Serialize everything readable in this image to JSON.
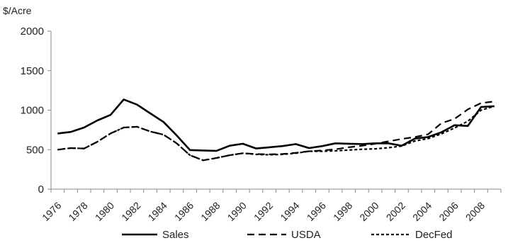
{
  "chart_data": {
    "type": "line",
    "ylabel": "$/Acre",
    "ylim": [
      0,
      2000
    ],
    "yticks": [
      "0",
      "500",
      "1000",
      "1500",
      "2000"
    ],
    "x": [
      1976,
      1977,
      1978,
      1979,
      1980,
      1981,
      1982,
      1983,
      1984,
      1985,
      1986,
      1987,
      1988,
      1989,
      1990,
      1991,
      1992,
      1993,
      1994,
      1995,
      1996,
      1997,
      1998,
      1999,
      2000,
      2001,
      2002,
      2003,
      2004,
      2005,
      2006,
      2007,
      2008,
      2009
    ],
    "xtick_labels": [
      "1976",
      "1978",
      "1980",
      "1982",
      "1984",
      "1986",
      "1988",
      "1990",
      "1992",
      "1994",
      "1996",
      "1998",
      "2000",
      "2002",
      "2004",
      "2006",
      "2008"
    ],
    "grid": false,
    "legend_position": "bottom",
    "series": [
      {
        "name": "Sales",
        "style": "solid",
        "values": [
          705,
          725,
          780,
          870,
          940,
          1135,
          1070,
          960,
          850,
          680,
          495,
          490,
          485,
          550,
          575,
          515,
          530,
          545,
          570,
          520,
          545,
          580,
          575,
          570,
          580,
          580,
          550,
          640,
          660,
          720,
          810,
          800,
          1040,
          1050
        ]
      },
      {
        "name": "USDA",
        "style": "long-dash",
        "values": [
          500,
          520,
          515,
          600,
          705,
          780,
          790,
          730,
          690,
          580,
          430,
          365,
          395,
          430,
          455,
          445,
          440,
          445,
          460,
          480,
          490,
          505,
          530,
          550,
          575,
          605,
          635,
          660,
          695,
          835,
          890,
          1010,
          1090,
          1110
        ]
      },
      {
        "name": "DecFed",
        "style": "short-dash",
        "values": [
          500,
          520,
          515,
          600,
          705,
          780,
          790,
          730,
          690,
          580,
          430,
          365,
          395,
          430,
          455,
          440,
          435,
          440,
          455,
          480,
          480,
          485,
          495,
          505,
          510,
          525,
          545,
          610,
          640,
          700,
          775,
          860,
          1000,
          1050
        ]
      }
    ]
  }
}
